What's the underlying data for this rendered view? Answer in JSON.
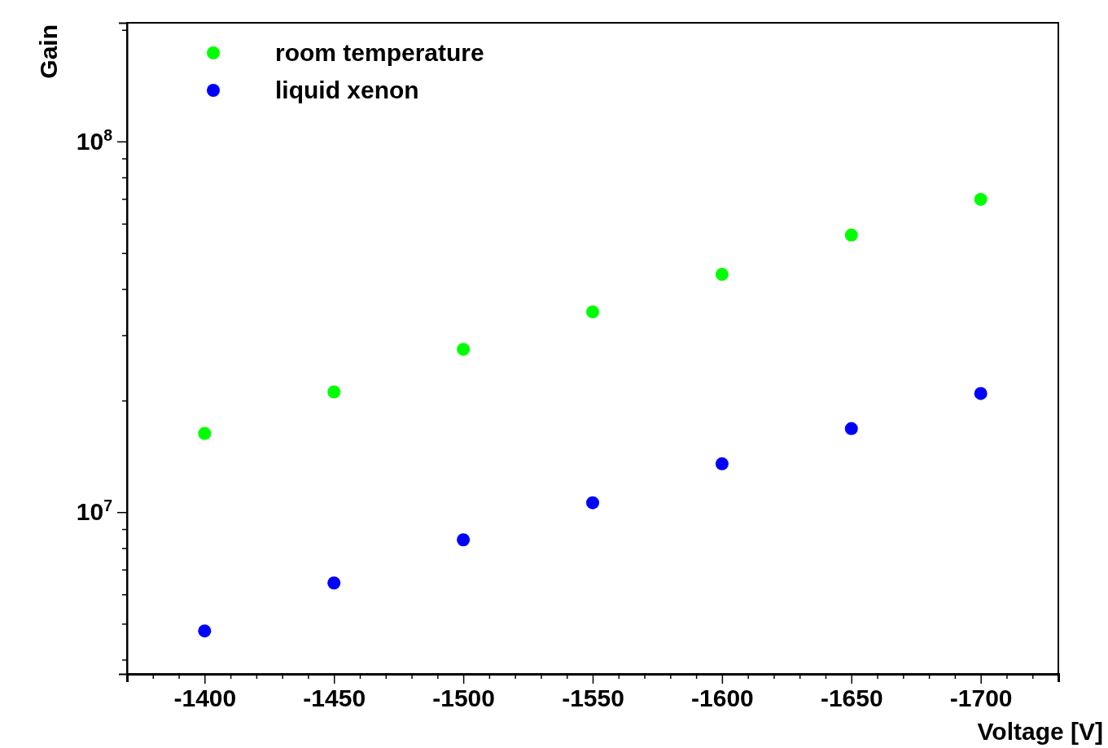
{
  "chart_data": {
    "type": "scatter",
    "xlabel": "Voltage [V]",
    "ylabel": "Gain",
    "x": [
      -1400,
      -1450,
      -1500,
      -1550,
      -1600,
      -1650,
      -1700
    ],
    "series": [
      {
        "name": "room temperature",
        "color": "#00ff00",
        "values": [
          16300000,
          21100000,
          27500000,
          34700000,
          43800000,
          55900000,
          69800000
        ]
      },
      {
        "name": "liquid xenon",
        "color": "#0000ff",
        "values": [
          4780000,
          6440000,
          8420000,
          10600000,
          13500000,
          16800000,
          20900000
        ]
      }
    ],
    "xlim": [
      -1370,
      -1730
    ],
    "ylim": [
      3660000,
      209000000
    ],
    "log": true,
    "xticks": [
      {
        "value": -1380,
        "label": null
      },
      {
        "value": -1390,
        "label": null
      },
      -1400,
      {
        "value": -1410,
        "label": null
      },
      {
        "value": -1420,
        "label": null
      },
      {
        "value": -1430,
        "label": null
      },
      {
        "value": -1440,
        "label": null
      },
      -1450,
      {
        "value": -1460,
        "label": null
      },
      {
        "value": -1470,
        "label": null
      },
      {
        "value": -1480,
        "label": null
      },
      {
        "value": -1490,
        "label": null
      },
      -1500,
      {
        "value": -1510,
        "label": null
      },
      {
        "value": -1520,
        "label": null
      },
      {
        "value": -1530,
        "label": null
      },
      {
        "value": -1540,
        "label": null
      },
      -1550,
      {
        "value": -1560,
        "label": null
      },
      {
        "value": -1570,
        "label": null
      },
      {
        "value": -1580,
        "label": null
      },
      {
        "value": -1590,
        "label": null
      },
      -1600,
      {
        "value": -1610,
        "label": null
      },
      {
        "value": -1620,
        "label": null
      },
      {
        "value": -1630,
        "label": null
      },
      {
        "value": -1640,
        "label": null
      },
      -1650,
      {
        "value": -1660,
        "label": null
      },
      {
        "value": -1670,
        "label": null
      },
      {
        "value": -1680,
        "label": null
      },
      {
        "value": -1690,
        "label": null
      },
      -1700,
      {
        "value": -1710,
        "label": null
      },
      {
        "value": -1720,
        "label": null
      }
    ],
    "yticks": [
      {
        "value": 4000000,
        "label": null
      },
      {
        "value": 5000000,
        "label": null
      },
      {
        "value": 6000000,
        "label": null
      },
      {
        "value": 7000000,
        "label": null
      },
      {
        "value": 8000000,
        "label": null
      },
      {
        "value": 9000000,
        "label": null
      },
      {
        "value": 10000000,
        "label": "10$^{7}$"
      },
      {
        "value": 20000000,
        "label": null
      },
      {
        "value": 30000000,
        "label": null
      },
      {
        "value": 40000000,
        "label": null
      },
      {
        "value": 50000000,
        "label": null
      },
      {
        "value": 60000000,
        "label": null
      },
      {
        "value": 70000000,
        "label": null
      },
      {
        "value": 80000000,
        "label": null
      },
      {
        "value": 90000000,
        "label": null
      },
      {
        "value": 100000000,
        "label": "10$^{8}$"
      },
      {
        "value": 200000000,
        "label": null
      }
    ],
    "marker": "circle",
    "legend": "top left",
    "grid": false
  }
}
